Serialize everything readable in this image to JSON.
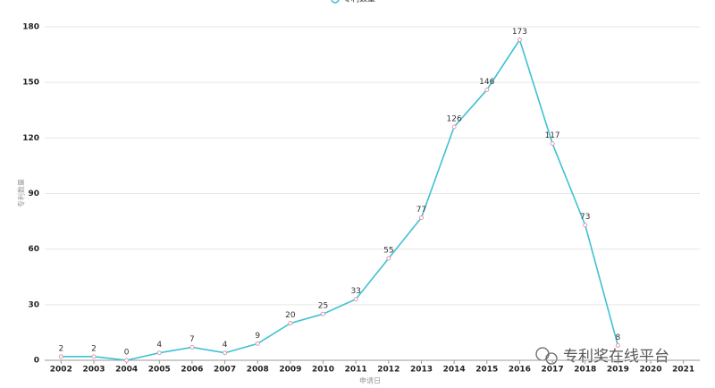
{
  "chart_data": {
    "type": "line",
    "x_label": "申请日",
    "y_label": "专利数量",
    "watermark": "专利奖在线平台",
    "categories": [
      "2002",
      "2003",
      "2004",
      "2005",
      "2006",
      "2007",
      "2008",
      "2009",
      "2010",
      "2011",
      "2012",
      "2013",
      "2014",
      "2015",
      "2016",
      "2017",
      "2018",
      "2019",
      "2020",
      "2021"
    ],
    "series": [
      {
        "name": "专利数量",
        "color": "#3fc1d3",
        "marker_color": "#e09ab4",
        "values": [
          2,
          2,
          0,
          4,
          7,
          4,
          9,
          20,
          25,
          33,
          55,
          77,
          126,
          146,
          173,
          117,
          73,
          8,
          null,
          null
        ]
      }
    ],
    "ylim": [
      0,
      180
    ],
    "yticks": [
      0,
      30,
      60,
      90,
      120,
      150,
      180
    ],
    "grid": true
  }
}
